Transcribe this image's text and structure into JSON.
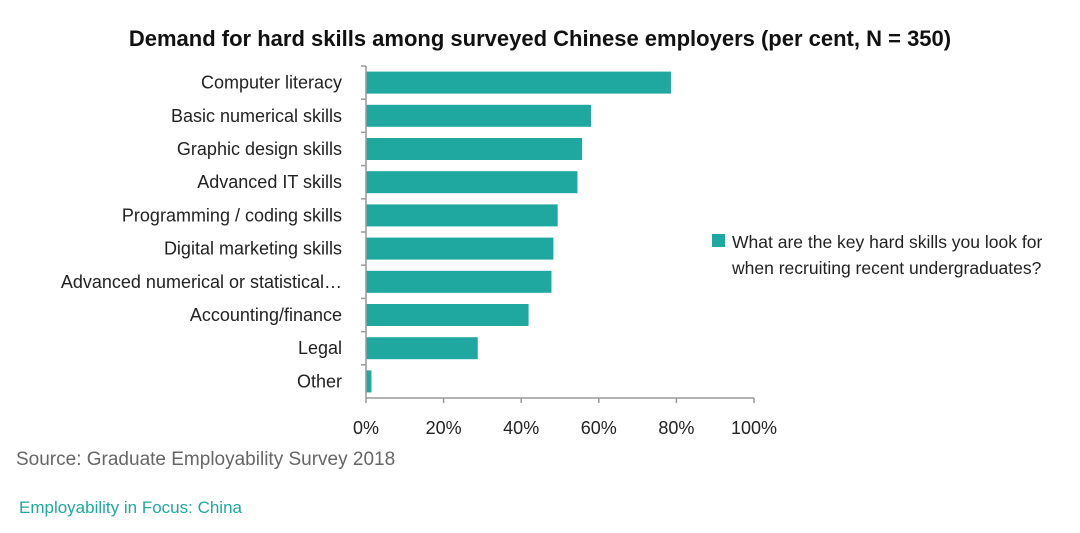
{
  "chart_data": {
    "type": "bar",
    "orientation": "horizontal",
    "title": "Demand for hard skills among surveyed Chinese employers (per cent, N = 350)",
    "categories": [
      "Computer literacy",
      "Basic numerical skills",
      "Graphic design skills",
      "Advanced IT skills",
      "Programming  / coding skills",
      "Digital marketing skills",
      "Advanced numerical or statistical…",
      "Accounting/finance",
      "Legal",
      "Other"
    ],
    "series": [
      {
        "name": "What are the key hard skills you look for when recruiting  recent undergraduates?",
        "values": [
          78.6,
          58.0,
          55.7,
          54.5,
          49.4,
          48.3,
          47.8,
          41.9,
          28.8,
          1.4
        ],
        "color": "#1FA8A0"
      }
    ],
    "xlim": [
      0,
      100
    ],
    "xticks": [
      "0%",
      "20%",
      "40%",
      "60%",
      "80%",
      "100%"
    ],
    "legend": "right",
    "grid": false
  },
  "source": "Source: Graduate Employability Survey 2018",
  "footer": "Employability in Focus: China"
}
